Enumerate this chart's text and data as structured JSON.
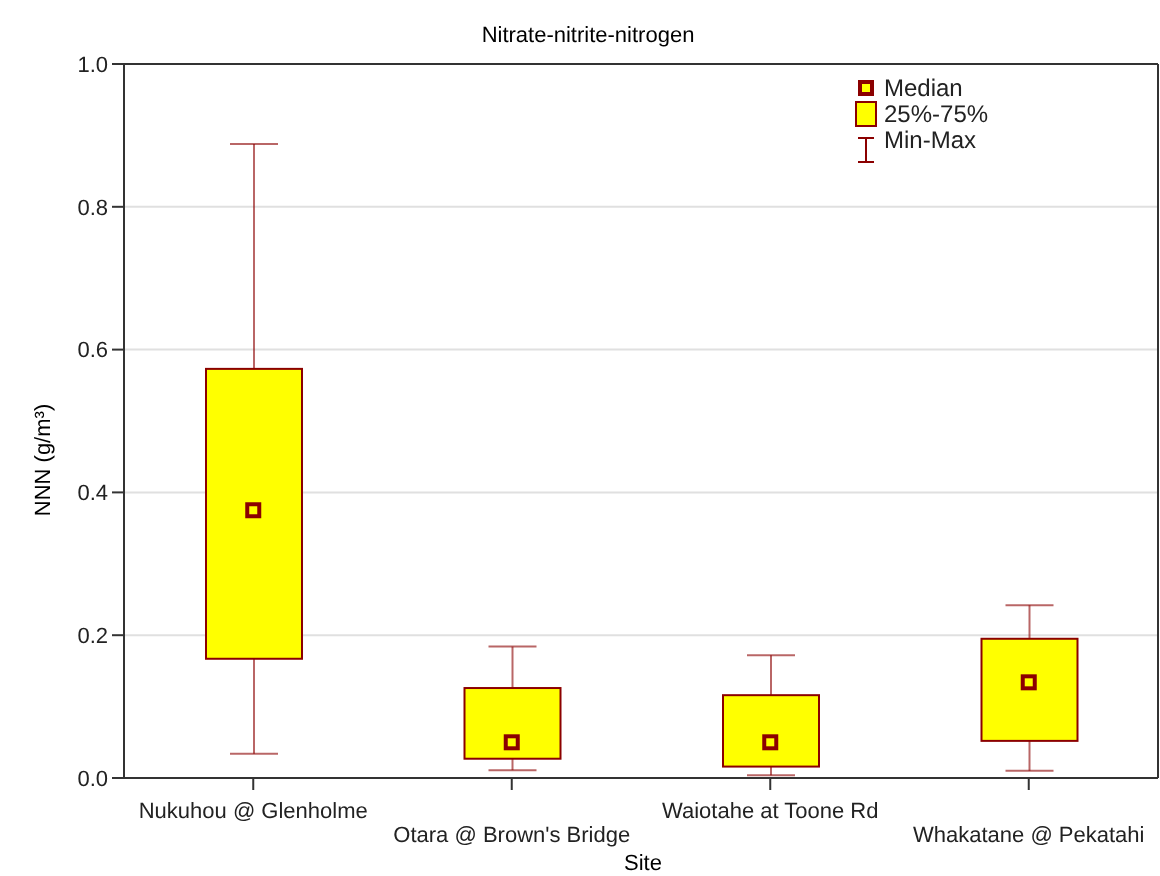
{
  "chart_data": {
    "type": "box",
    "title": "Nitrate-nitrite-nitrogen",
    "xlabel": "Site",
    "ylabel": "NNN (g/m³)",
    "categories": [
      "Nukuhou @ Glenholme",
      "Otara @ Brown's Bridge",
      "Waiotahe at Toone Rd",
      "Whakatane @ Pekatahi"
    ],
    "color": "#ffff00",
    "boxes": [
      {
        "low": 0.034,
        "q1": 0.167,
        "median": 0.375,
        "q3": 0.573,
        "high": 0.888
      },
      {
        "low": 0.011,
        "q1": 0.027,
        "median": 0.05,
        "q3": 0.126,
        "high": 0.184
      },
      {
        "low": 0.004,
        "q1": 0.016,
        "median": 0.05,
        "q3": 0.116,
        "high": 0.172
      },
      {
        "low": 0.01,
        "q1": 0.052,
        "median": 0.134,
        "q3": 0.195,
        "high": 0.242
      }
    ],
    "ylim": [
      0,
      1
    ],
    "yticks": [
      {
        "value": 0,
        "label": "0.0"
      },
      {
        "value": 0.2,
        "label": "0.2"
      },
      {
        "value": 0.4,
        "label": "0.4"
      },
      {
        "value": 0.6,
        "label": "0.6"
      },
      {
        "value": 0.8,
        "label": "0.8"
      },
      {
        "value": 1,
        "label": "1.0"
      }
    ],
    "grid": "y",
    "annotations": [
      "Median",
      "25%-75%",
      "Min-Max"
    ]
  }
}
